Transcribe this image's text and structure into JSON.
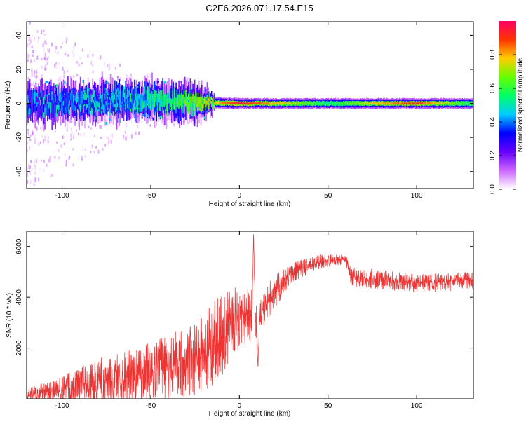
{
  "title": "C2E6.2026.071.17.54.E15",
  "chart_data": [
    {
      "type": "heatmap",
      "name": "spectrogram",
      "xlabel": "Height of straight line (km)",
      "ylabel": "Frequency (Hz)",
      "xlim": [
        -120,
        132
      ],
      "ylim": [
        -50,
        48
      ],
      "xticks": [
        -100,
        -50,
        0,
        50,
        100
      ],
      "yticks": [
        40,
        20,
        0,
        -20,
        -40
      ],
      "colorbar": {
        "label": "Normalized spectral amplitude",
        "range": [
          0,
          1
        ],
        "ticks": [
          0.0,
          0.2,
          0.4,
          0.6,
          0.8
        ],
        "colormap": [
          "#ffffff",
          "#cc66ff",
          "#6600ff",
          "#0000ff",
          "#00ccff",
          "#00ff66",
          "#66ff00",
          "#ffcc00",
          "#ff3300",
          "#ff0066"
        ]
      },
      "center_track": [
        {
          "x": -110,
          "f": 0
        },
        {
          "x": -50,
          "f": 2
        },
        {
          "x": -20,
          "f": 0.5
        },
        {
          "x": 0,
          "f": 0
        },
        {
          "x": 50,
          "f": 0
        },
        {
          "x": 100,
          "f": 0
        },
        {
          "x": 130,
          "f": 0
        }
      ],
      "spread_hz": [
        {
          "x": -120,
          "halfwidth": 48
        },
        {
          "x": -95,
          "halfwidth": 35
        },
        {
          "x": -60,
          "halfwidth": 18
        },
        {
          "x": -30,
          "halfwidth": 12
        },
        {
          "x": -14,
          "halfwidth": 5
        },
        {
          "x": 0,
          "halfwidth": 3
        },
        {
          "x": 132,
          "halfwidth": 3
        }
      ],
      "peak_amplitude": [
        {
          "x": -120,
          "amp": 0.25
        },
        {
          "x": -60,
          "amp": 0.4
        },
        {
          "x": -15,
          "amp": 0.75
        },
        {
          "x": 0,
          "amp": 0.95
        },
        {
          "x": 50,
          "amp": 0.55
        },
        {
          "x": 80,
          "amp": 0.8
        },
        {
          "x": 100,
          "amp": 0.9
        },
        {
          "x": 132,
          "amp": 0.55
        }
      ]
    },
    {
      "type": "line",
      "name": "snr",
      "xlabel": "Height of straight line (km)",
      "ylabel": "SNR (10 * v/v)",
      "xlim": [
        -120,
        132
      ],
      "ylim": [
        0,
        6600
      ],
      "xticks": [
        -100,
        -50,
        0,
        50,
        100
      ],
      "yticks": [
        2000,
        4000,
        6000
      ],
      "color": "#ee3333",
      "trend": [
        {
          "x": -120,
          "y": 150
        },
        {
          "x": -100,
          "y": 300
        },
        {
          "x": -80,
          "y": 700
        },
        {
          "x": -60,
          "y": 900
        },
        {
          "x": -40,
          "y": 1200
        },
        {
          "x": -20,
          "y": 1800
        },
        {
          "x": 0,
          "y": 3200
        },
        {
          "x": 10,
          "y": 3300
        },
        {
          "x": 20,
          "y": 4200
        },
        {
          "x": 30,
          "y": 5000
        },
        {
          "x": 45,
          "y": 5400
        },
        {
          "x": 60,
          "y": 5500
        },
        {
          "x": 63,
          "y": 4800
        },
        {
          "x": 80,
          "y": 4700
        },
        {
          "x": 100,
          "y": 4550
        },
        {
          "x": 120,
          "y": 4600
        },
        {
          "x": 132,
          "y": 4700
        }
      ],
      "noise": [
        {
          "x": -120,
          "amp": 300
        },
        {
          "x": -80,
          "amp": 900
        },
        {
          "x": -40,
          "amp": 1300
        },
        {
          "x": -10,
          "amp": 1700
        },
        {
          "x": 10,
          "amp": 900
        },
        {
          "x": 30,
          "amp": 400
        },
        {
          "x": 60,
          "amp": 200
        },
        {
          "x": 65,
          "amp": 400
        },
        {
          "x": 132,
          "amp": 350
        }
      ],
      "features": [
        {
          "x": 8,
          "y": 6600,
          "note": "spike"
        },
        {
          "x": 10.5,
          "y": 1150,
          "note": "dip"
        }
      ]
    }
  ]
}
